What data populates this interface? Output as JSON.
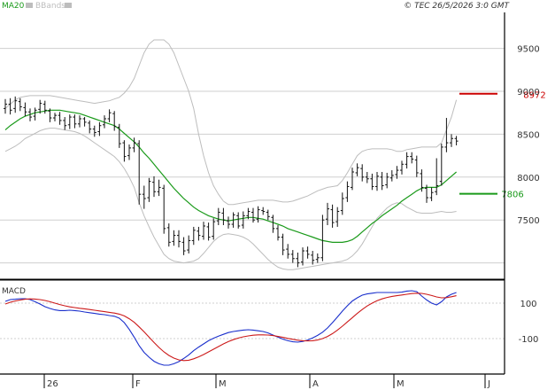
{
  "legend": {
    "ma20": "MA20",
    "bbands": "BBands",
    "ma20_color": "#1a9a1a",
    "bbands_color": "#bdbdbd"
  },
  "copyright": "© TEC 26/5/2026 3:0 GMT",
  "macd_label": "MACD",
  "chart_data": [
    {
      "type": "ohlc",
      "x_ticks": [
        "26",
        "F",
        "M",
        "A",
        "M",
        "J"
      ],
      "y_ticks": [
        9500,
        9000,
        8500,
        8000,
        7500
      ],
      "y_tick_labels": [
        "9500",
        "9000",
        "8500",
        "8000",
        "7500"
      ],
      "ylim": [
        6820,
        9920
      ],
      "grid": true,
      "series_colors": {
        "ohlc": "#111111",
        "ma20": "#1a9a1a",
        "bbands": "#bdbdbd"
      },
      "close": [
        8850,
        8780,
        8890,
        8820,
        8760,
        8700,
        8780,
        8860,
        8780,
        8690,
        8720,
        8660,
        8600,
        8700,
        8620,
        8680,
        8640,
        8560,
        8520,
        8600,
        8680,
        8750,
        8590,
        8390,
        8240,
        8340,
        8400,
        7800,
        7750,
        7950,
        7830,
        7880,
        7400,
        7240,
        7320,
        7250,
        7140,
        7260,
        7380,
        7320,
        7430,
        7300,
        7480,
        7590,
        7500,
        7450,
        7560,
        7430,
        7550,
        7600,
        7500,
        7620,
        7600,
        7540,
        7400,
        7300,
        7150,
        7100,
        7050,
        7000,
        7140,
        7100,
        7030,
        7060,
        7500,
        7630,
        7470,
        7600,
        7750,
        7890,
        8060,
        8110,
        8000,
        7980,
        7890,
        8010,
        7900,
        8000,
        8020,
        8080,
        8150,
        8240,
        8210,
        8050,
        7880,
        7760,
        7820,
        7900,
        8350,
        8400,
        8450,
        8420
      ],
      "open": [
        8800,
        8850,
        8800,
        8880,
        8810,
        8760,
        8710,
        8790,
        8850,
        8770,
        8690,
        8720,
        8660,
        8610,
        8700,
        8620,
        8680,
        8630,
        8560,
        8530,
        8610,
        8680,
        8740,
        8580,
        8400,
        8250,
        8340,
        8390,
        7800,
        7760,
        7940,
        7830,
        7870,
        7410,
        7250,
        7320,
        7240,
        7150,
        7260,
        7370,
        7310,
        7420,
        7310,
        7490,
        7580,
        7490,
        7450,
        7550,
        7440,
        7550,
        7590,
        7510,
        7610,
        7590,
        7530,
        7400,
        7300,
        7160,
        7100,
        7050,
        7010,
        7140,
        7090,
        7040,
        7060,
        7510,
        7620,
        7480,
        7610,
        7760,
        7880,
        8050,
        8100,
        8000,
        7980,
        7890,
        8000,
        7910,
        7990,
        8030,
        8080,
        8150,
        8240,
        8200,
        8040,
        7870,
        7760,
        7830,
        7950,
        8350,
        8400,
        8450
      ],
      "high": [
        8910,
        8920,
        8940,
        8920,
        8870,
        8800,
        8810,
        8900,
        8890,
        8800,
        8750,
        8760,
        8700,
        8730,
        8730,
        8720,
        8700,
        8660,
        8600,
        8640,
        8720,
        8790,
        8770,
        8620,
        8430,
        8380,
        8460,
        8430,
        7900,
        7990,
        8010,
        7970,
        7910,
        7460,
        7380,
        7380,
        7300,
        7320,
        7420,
        7420,
        7480,
        7470,
        7520,
        7640,
        7640,
        7540,
        7590,
        7590,
        7600,
        7640,
        7640,
        7660,
        7650,
        7620,
        7560,
        7440,
        7340,
        7220,
        7150,
        7120,
        7180,
        7190,
        7140,
        7110,
        7560,
        7700,
        7680,
        7650,
        7820,
        7950,
        8110,
        8160,
        8150,
        8060,
        8040,
        8060,
        8060,
        8050,
        8080,
        8130,
        8190,
        8290,
        8290,
        8250,
        8090,
        7910,
        7880,
        8220,
        8390,
        8690,
        8500,
        8480
      ],
      "low": [
        8740,
        8730,
        8750,
        8770,
        8710,
        8650,
        8660,
        8740,
        8740,
        8640,
        8650,
        8610,
        8550,
        8560,
        8570,
        8580,
        8590,
        8510,
        8470,
        8480,
        8570,
        8640,
        8540,
        8340,
        8180,
        8200,
        8290,
        7680,
        7630,
        7710,
        7770,
        7780,
        7340,
        7190,
        7200,
        7180,
        7090,
        7110,
        7210,
        7260,
        7270,
        7260,
        7270,
        7440,
        7440,
        7400,
        7410,
        7400,
        7400,
        7510,
        7470,
        7470,
        7560,
        7500,
        7350,
        7260,
        7090,
        7050,
        7000,
        6950,
        6970,
        7050,
        6980,
        7000,
        7020,
        7440,
        7410,
        7420,
        7560,
        7710,
        7850,
        8010,
        7950,
        7930,
        7850,
        7840,
        7850,
        7870,
        7950,
        7980,
        8030,
        8100,
        8160,
        8000,
        7830,
        7700,
        7720,
        7790,
        7900,
        8290,
        8350,
        8370
      ],
      "ma20": [
        8550,
        8600,
        8640,
        8680,
        8710,
        8730,
        8750,
        8760,
        8770,
        8780,
        8780,
        8780,
        8770,
        8760,
        8750,
        8740,
        8720,
        8700,
        8680,
        8660,
        8640,
        8620,
        8600,
        8560,
        8510,
        8460,
        8410,
        8350,
        8280,
        8220,
        8150,
        8080,
        8010,
        7940,
        7870,
        7810,
        7750,
        7700,
        7650,
        7610,
        7580,
        7550,
        7530,
        7510,
        7500,
        7490,
        7500,
        7510,
        7520,
        7530,
        7530,
        7520,
        7510,
        7490,
        7470,
        7450,
        7430,
        7400,
        7380,
        7360,
        7340,
        7320,
        7300,
        7280,
        7260,
        7250,
        7240,
        7240,
        7240,
        7250,
        7270,
        7310,
        7360,
        7410,
        7460,
        7500,
        7550,
        7590,
        7630,
        7670,
        7720,
        7760,
        7800,
        7840,
        7870,
        7880,
        7880,
        7880,
        7910,
        7960,
        8010,
        8060
      ],
      "bb_upper": [
        8800,
        8850,
        8900,
        8930,
        8940,
        8950,
        8950,
        8950,
        8950,
        8950,
        8940,
        8930,
        8920,
        8910,
        8900,
        8890,
        8880,
        8870,
        8860,
        8870,
        8880,
        8890,
        8910,
        8930,
        8980,
        9050,
        9150,
        9300,
        9450,
        9550,
        9600,
        9600,
        9600,
        9550,
        9450,
        9300,
        9150,
        9000,
        8800,
        8500,
        8250,
        8050,
        7900,
        7800,
        7720,
        7680,
        7680,
        7690,
        7700,
        7710,
        7720,
        7730,
        7730,
        7730,
        7730,
        7720,
        7710,
        7710,
        7720,
        7740,
        7760,
        7780,
        7810,
        7840,
        7860,
        7880,
        7890,
        7900,
        7960,
        8050,
        8150,
        8250,
        8300,
        8320,
        8330,
        8330,
        8330,
        8330,
        8320,
        8300,
        8300,
        8320,
        8330,
        8340,
        8350,
        8350,
        8350,
        8350,
        8400,
        8550,
        8700,
        8900
      ],
      "bb_lower": [
        8300,
        8330,
        8360,
        8400,
        8450,
        8480,
        8510,
        8540,
        8560,
        8570,
        8570,
        8560,
        8550,
        8540,
        8530,
        8510,
        8480,
        8440,
        8400,
        8360,
        8320,
        8280,
        8240,
        8180,
        8100,
        8000,
        7880,
        7700,
        7550,
        7420,
        7300,
        7200,
        7100,
        7050,
        7020,
        7010,
        7000,
        7010,
        7020,
        7050,
        7110,
        7180,
        7250,
        7300,
        7330,
        7340,
        7330,
        7320,
        7300,
        7270,
        7220,
        7160,
        7100,
        7040,
        6990,
        6950,
        6930,
        6920,
        6920,
        6930,
        6940,
        6950,
        6960,
        6970,
        6980,
        6990,
        7000,
        7010,
        7020,
        7040,
        7080,
        7140,
        7220,
        7320,
        7420,
        7520,
        7580,
        7640,
        7680,
        7700,
        7690,
        7650,
        7620,
        7590,
        7580,
        7580,
        7580,
        7590,
        7600,
        7590,
        7590,
        7600
      ]
    },
    {
      "type": "line",
      "title": "MACD",
      "y_ticks": [
        100,
        -100
      ],
      "y_tick_labels": [
        "100",
        "-100"
      ],
      "ylim": [
        -300,
        220
      ],
      "series": [
        {
          "color": "#1a2fcc",
          "values": [
            110,
            120,
            122,
            125,
            125,
            120,
            108,
            95,
            80,
            70,
            62,
            58,
            58,
            60,
            58,
            55,
            50,
            46,
            42,
            38,
            35,
            30,
            26,
            15,
            -10,
            -48,
            -92,
            -140,
            -178,
            -205,
            -228,
            -242,
            -250,
            -250,
            -242,
            -230,
            -212,
            -192,
            -168,
            -148,
            -130,
            -112,
            -98,
            -86,
            -76,
            -66,
            -60,
            -56,
            -52,
            -50,
            -52,
            -56,
            -60,
            -68,
            -80,
            -92,
            -103,
            -112,
            -118,
            -120,
            -116,
            -108,
            -96,
            -82,
            -64,
            -40,
            -10,
            22,
            55,
            85,
            112,
            130,
            145,
            152,
            156,
            160,
            160,
            160,
            160,
            160,
            162,
            168,
            170,
            165,
            140,
            118,
            100,
            90,
            108,
            135,
            150,
            160
          ]
        },
        {
          "color": "#cc1a1a",
          "values": [
            95,
            105,
            112,
            118,
            122,
            124,
            123,
            120,
            115,
            108,
            100,
            92,
            85,
            79,
            75,
            71,
            68,
            64,
            60,
            56,
            52,
            48,
            44,
            38,
            28,
            12,
            -8,
            -34,
            -62,
            -92,
            -122,
            -150,
            -175,
            -195,
            -210,
            -220,
            -224,
            -222,
            -214,
            -203,
            -190,
            -175,
            -160,
            -145,
            -130,
            -117,
            -106,
            -97,
            -90,
            -85,
            -81,
            -79,
            -79,
            -80,
            -83,
            -88,
            -93,
            -99,
            -104,
            -109,
            -112,
            -113,
            -112,
            -108,
            -100,
            -88,
            -72,
            -52,
            -30,
            -6,
            18,
            42,
            64,
            84,
            100,
            114,
            124,
            132,
            138,
            142,
            146,
            150,
            154,
            156,
            155,
            150,
            143,
            135,
            130,
            131,
            136,
            142
          ]
        }
      ]
    }
  ]
}
